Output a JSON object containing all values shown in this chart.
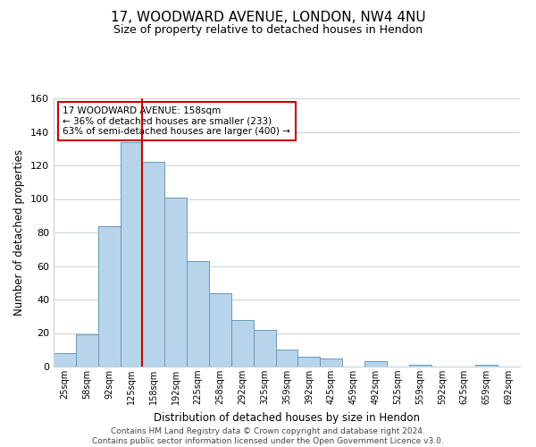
{
  "title1": "17, WOODWARD AVENUE, LONDON, NW4 4NU",
  "title2": "Size of property relative to detached houses in Hendon",
  "xlabel": "Distribution of detached houses by size in Hendon",
  "ylabel": "Number of detached properties",
  "bar_labels": [
    "25sqm",
    "58sqm",
    "92sqm",
    "125sqm",
    "158sqm",
    "192sqm",
    "225sqm",
    "258sqm",
    "292sqm",
    "325sqm",
    "359sqm",
    "392sqm",
    "425sqm",
    "459sqm",
    "492sqm",
    "525sqm",
    "559sqm",
    "592sqm",
    "625sqm",
    "659sqm",
    "692sqm"
  ],
  "bar_values": [
    8,
    19,
    84,
    134,
    122,
    101,
    63,
    44,
    28,
    22,
    10,
    6,
    5,
    0,
    3,
    0,
    1,
    0,
    0,
    1,
    0
  ],
  "bar_color": "#b8d4ea",
  "bar_edge_color": "#6699bb",
  "vline_x_index": 4,
  "vline_color": "#cc0000",
  "annotation_text": "17 WOODWARD AVENUE: 158sqm\n← 36% of detached houses are smaller (233)\n63% of semi-detached houses are larger (400) →",
  "annotation_box_color": "white",
  "annotation_box_edge": "#cc0000",
  "ylim": [
    0,
    160
  ],
  "yticks": [
    0,
    20,
    40,
    60,
    80,
    100,
    120,
    140,
    160
  ],
  "footer_line1": "Contains HM Land Registry data © Crown copyright and database right 2024.",
  "footer_line2": "Contains public sector information licensed under the Open Government Licence v3.0.",
  "background_color": "#ffffff",
  "grid_color": "#c8d0d8"
}
